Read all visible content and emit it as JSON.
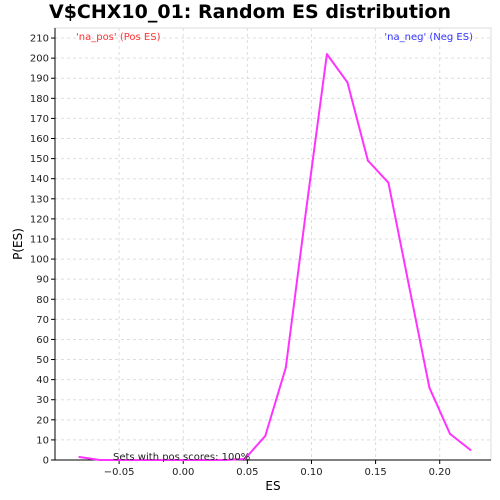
{
  "chart_data": {
    "type": "line",
    "title": "V$CHX10_01: Random ES distribution",
    "xlabel": "ES",
    "ylabel": "P(ES)",
    "xlim": [
      -0.1,
      0.24
    ],
    "ylim": [
      0,
      215
    ],
    "x_ticks": [
      -0.05,
      0.0,
      0.05,
      0.1,
      0.15,
      0.2
    ],
    "x_tick_labels": [
      "−0.05",
      "0.00",
      "0.05",
      "0.10",
      "0.15",
      "0.20"
    ],
    "y_ticks": [
      0,
      10,
      20,
      30,
      40,
      50,
      60,
      70,
      80,
      90,
      100,
      110,
      120,
      130,
      140,
      150,
      160,
      170,
      180,
      190,
      200,
      210
    ],
    "y_tick_labels": [
      "0",
      "10",
      "20",
      "30",
      "40",
      "50",
      "60",
      "70",
      "80",
      "90",
      "100",
      "110",
      "120",
      "130",
      "140",
      "150",
      "160",
      "170",
      "180",
      "190",
      "200",
      "210"
    ],
    "grid": true,
    "legend": [
      {
        "label": "'na_pos' (Pos ES)",
        "color": "#ff3333",
        "placement": "top-left"
      },
      {
        "label": "'na_neg' (Neg ES)",
        "color": "#3333ff",
        "placement": "top-right"
      }
    ],
    "annotation": "Sets with pos scores: 100%",
    "series": [
      {
        "color": "#ff33ff",
        "x": [
          -0.081,
          -0.065,
          -0.048,
          -0.032,
          -0.016,
          0.0,
          0.016,
          0.032,
          0.048,
          0.064,
          0.08,
          0.096,
          0.112,
          0.128,
          0.144,
          0.16,
          0.176,
          0.192,
          0.208,
          0.224
        ],
        "y": [
          1.5,
          0,
          0,
          0,
          0,
          0,
          0,
          0,
          0.5,
          12,
          46,
          125,
          202,
          188,
          149,
          138,
          87,
          36,
          13,
          5
        ]
      }
    ]
  }
}
